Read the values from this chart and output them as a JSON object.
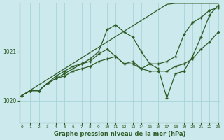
{
  "title": "Graphe pression niveau de la mer (hPa)",
  "background_color": "#cce9ed",
  "grid_color": "#a8d4d8",
  "line_color": "#2d5c27",
  "hours": [
    0,
    1,
    2,
    3,
    4,
    5,
    6,
    7,
    8,
    9,
    10,
    11,
    12,
    13,
    14,
    15,
    16,
    17,
    18,
    19,
    20,
    21,
    22,
    23
  ],
  "ylim": [
    1019.55,
    1022.0
  ],
  "yticks": [
    1020,
    1021
  ],
  "line_straight": [
    1020.1,
    1020.21,
    1020.32,
    1020.43,
    1020.54,
    1020.65,
    1020.76,
    1020.87,
    1020.98,
    1021.09,
    1021.2,
    1021.31,
    1021.42,
    1021.53,
    1021.64,
    1021.75,
    1021.86,
    1021.97,
    1021.99,
    1021.99,
    1021.99,
    1021.99,
    1021.99,
    1021.99
  ],
  "line_zigzag": [
    1020.1,
    1020.2,
    1020.2,
    1020.35,
    1020.5,
    1020.6,
    1020.7,
    1020.75,
    1020.85,
    1021.0,
    1021.45,
    1021.55,
    1021.4,
    1021.3,
    1021.0,
    1020.75,
    1020.65,
    1020.05,
    1020.55,
    1020.6,
    1020.9,
    1021.3,
    1021.75,
    1021.95
  ],
  "line_mid": [
    1020.1,
    1020.2,
    1020.2,
    1020.35,
    1020.45,
    1020.55,
    1020.65,
    1020.75,
    1020.8,
    1020.95,
    1021.05,
    1020.9,
    1020.75,
    1020.8,
    1020.65,
    1020.75,
    1020.75,
    1020.8,
    1020.9,
    1021.35,
    1021.6,
    1021.7,
    1021.85,
    1021.9
  ],
  "line_flat": [
    1020.1,
    1020.2,
    1020.2,
    1020.35,
    1020.45,
    1020.5,
    1020.6,
    1020.65,
    1020.7,
    1020.8,
    1020.85,
    1020.9,
    1020.75,
    1020.75,
    1020.65,
    1020.6,
    1020.6,
    1020.6,
    1020.7,
    1020.75,
    1020.85,
    1021.05,
    1021.2,
    1021.4
  ]
}
